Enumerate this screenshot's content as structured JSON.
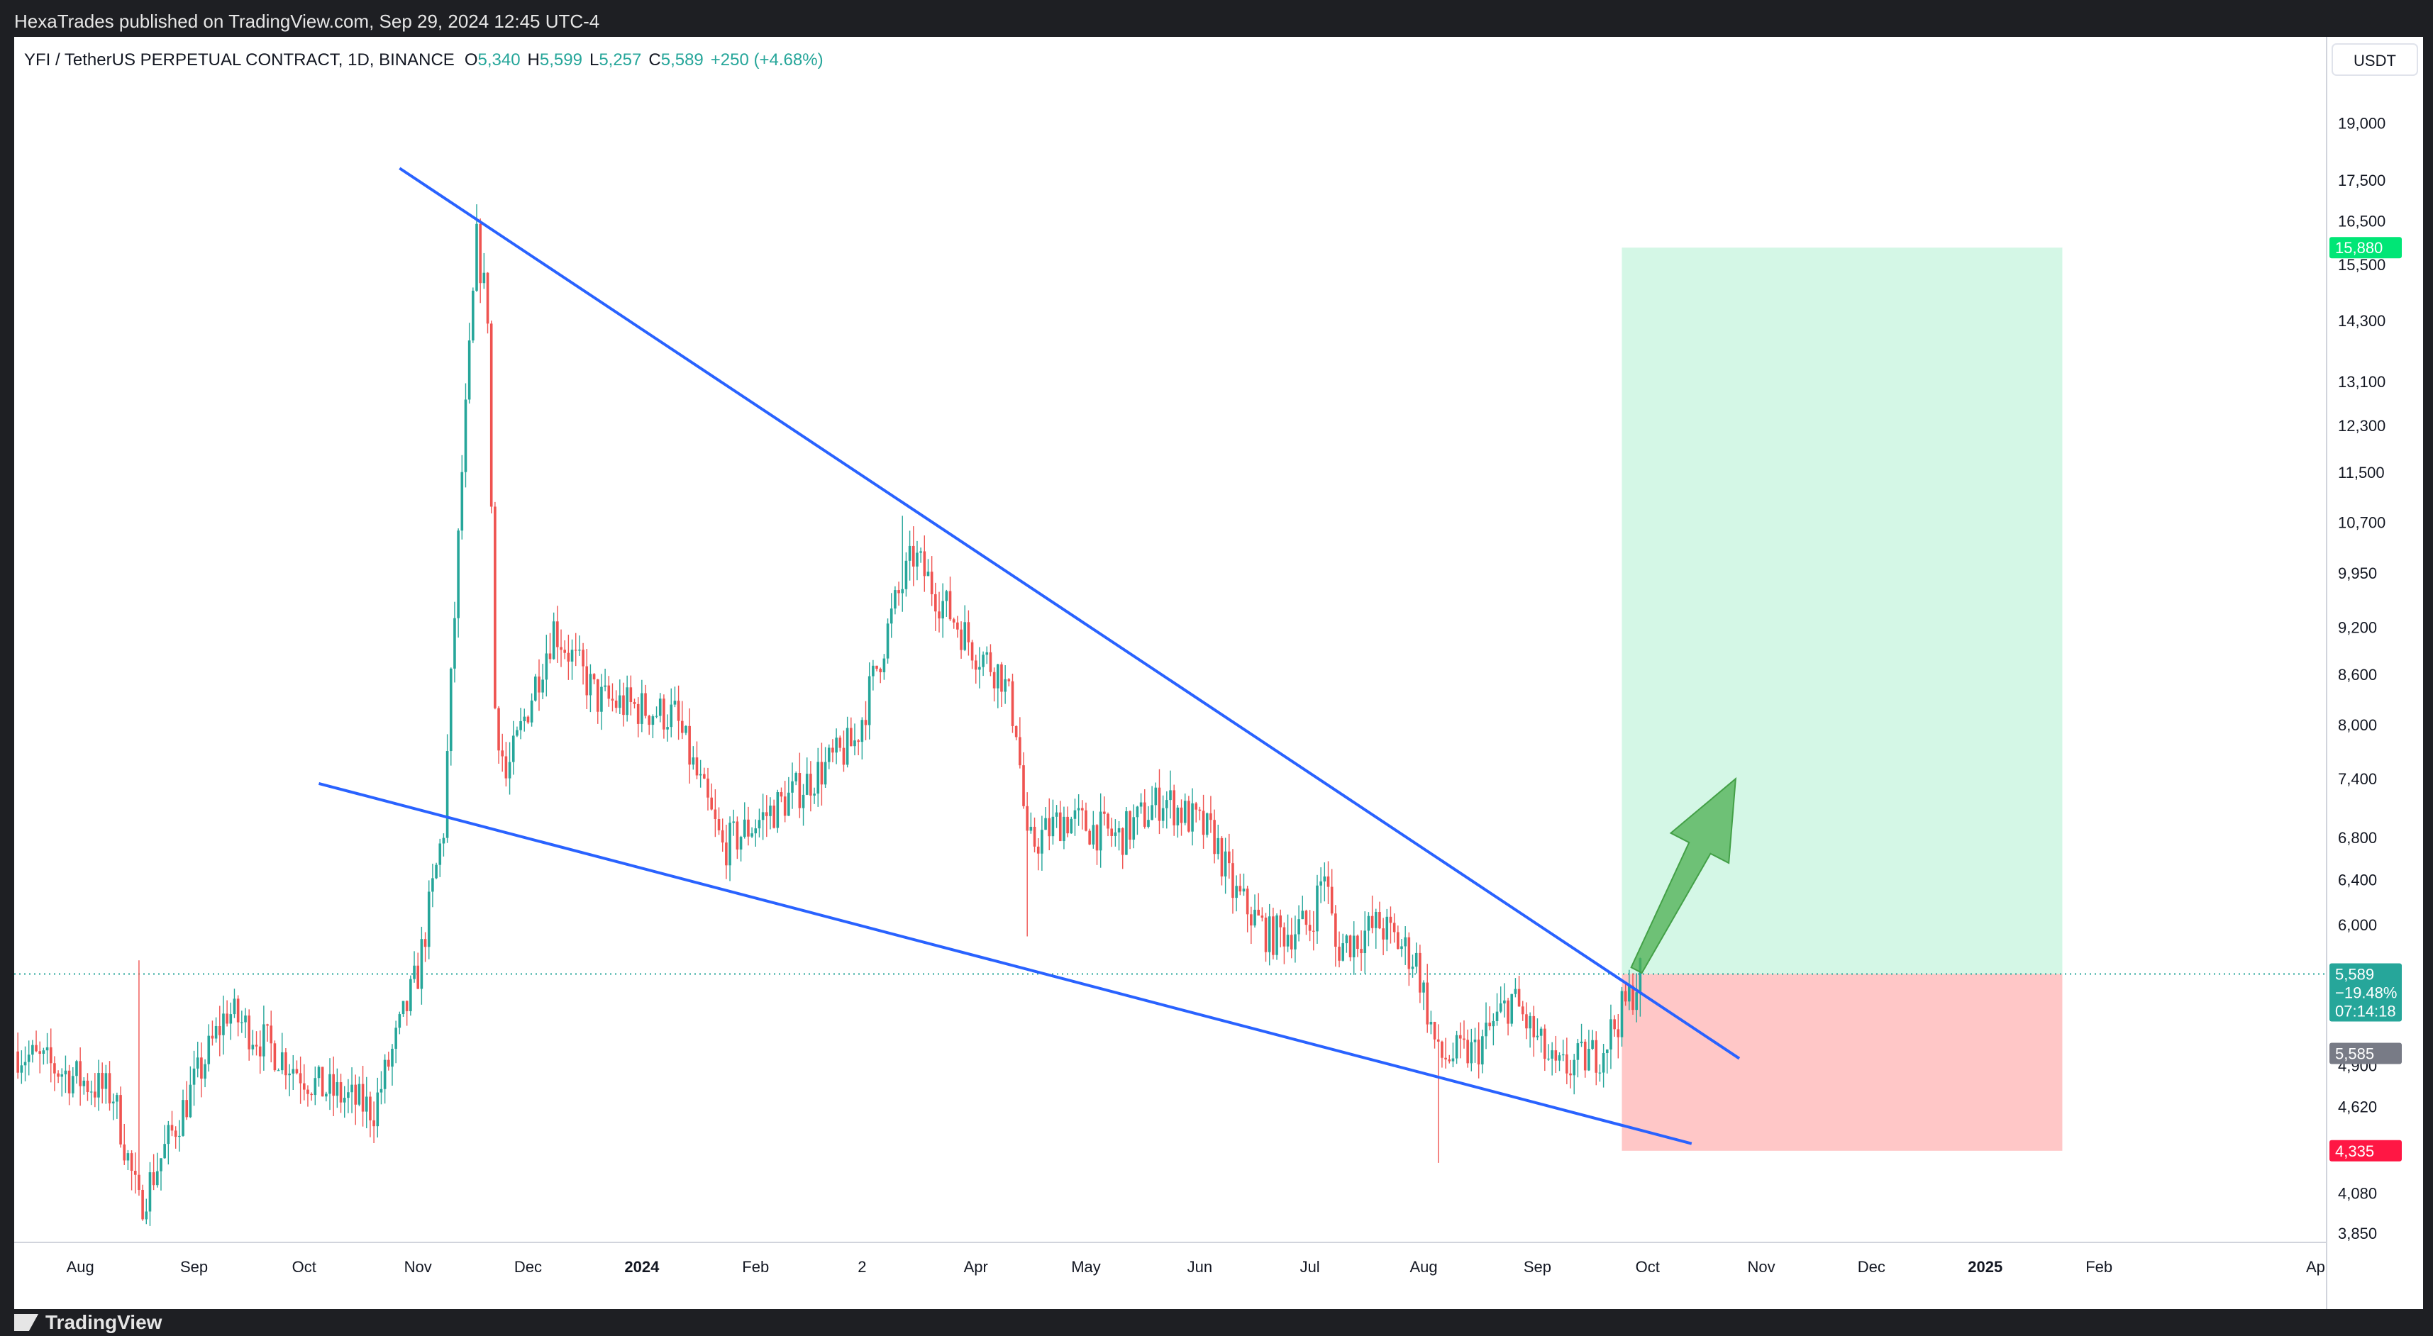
{
  "header": {
    "text": "HexaTrades published on TradingView.com, Sep 29, 2024 12:45 UTC-4"
  },
  "legend": {
    "symbol": "YFI / TetherUS PERPETUAL CONTRACT, 1D, BINANCE",
    "o_label": "O",
    "o_value": "5,340",
    "h_label": "H",
    "h_value": "5,599",
    "l_label": "L",
    "l_value": "5,257",
    "c_label": "C",
    "c_value": "5,589",
    "change": "+250 (+4.68%)"
  },
  "footer": {
    "brand": "TradingView"
  },
  "colors": {
    "up": "#26a69a",
    "down": "#ef5350",
    "trendline": "#2962ff",
    "target_zone": "#d4f7e6",
    "stop_zone": "#ffc7c7",
    "arrow": "#4caf50"
  },
  "chart_data": {
    "type": "candlestick",
    "scale": "log",
    "currency": "USDT",
    "x_ticks": [
      "Aug",
      "Sep",
      "Oct",
      "Nov",
      "Dec",
      "2024",
      "Feb",
      "2",
      "Apr",
      "May",
      "Jun",
      "Jul",
      "Aug",
      "Sep",
      "Oct",
      "Nov",
      "Dec",
      "2025",
      "Feb",
      "Ap"
    ],
    "x_ticks_bold": [
      "2024",
      "2025"
    ],
    "y_ticks": [
      "19,000",
      "17,500",
      "16,500",
      "15,500",
      "14,300",
      "13,100",
      "12,300",
      "11,500",
      "10,700",
      "9,950",
      "9,200",
      "8,600",
      "8,000",
      "7,400",
      "6,800",
      "6,400",
      "6,000",
      "4,900",
      "4,620",
      "4,080",
      "3,850"
    ],
    "y_range": [
      3800,
      21500
    ],
    "current_price": {
      "value": 5589,
      "label": "5,589",
      "change_pct": "−19.48%",
      "countdown": "07:14:18"
    },
    "secondary_price": {
      "value": 5585,
      "label": "5,585"
    },
    "target": {
      "value": 15880,
      "label": "15,880"
    },
    "stop": {
      "value": 4335,
      "label": "4,335"
    },
    "anchors": [
      {
        "date": "2023-07-15",
        "price": 5000
      },
      {
        "date": "2023-08-10",
        "price": 4700
      },
      {
        "date": "2023-08-17",
        "price": 4000
      },
      {
        "date": "2023-09-10",
        "price": 5300
      },
      {
        "date": "2023-10-05",
        "price": 4750
      },
      {
        "date": "2023-10-20",
        "price": 4600
      },
      {
        "date": "2023-11-01",
        "price": 5600
      },
      {
        "date": "2023-11-08",
        "price": 6900
      },
      {
        "date": "2023-11-13",
        "price": 11500
      },
      {
        "date": "2023-11-17",
        "price": 16000
      },
      {
        "date": "2023-11-20",
        "price": 14500
      },
      {
        "date": "2023-11-22",
        "price": 8200
      },
      {
        "date": "2023-11-25",
        "price": 7400
      },
      {
        "date": "2023-12-03",
        "price": 8500
      },
      {
        "date": "2023-12-08",
        "price": 9200
      },
      {
        "date": "2023-12-20",
        "price": 8300
      },
      {
        "date": "2024-01-10",
        "price": 8100
      },
      {
        "date": "2024-01-23",
        "price": 6700
      },
      {
        "date": "2024-02-10",
        "price": 7200
      },
      {
        "date": "2024-02-28",
        "price": 7800
      },
      {
        "date": "2024-03-10",
        "price": 9500
      },
      {
        "date": "2024-03-15",
        "price": 10200
      },
      {
        "date": "2024-03-22",
        "price": 9600
      },
      {
        "date": "2024-04-01",
        "price": 8900
      },
      {
        "date": "2024-04-08",
        "price": 8600
      },
      {
        "date": "2024-04-12",
        "price": 8000
      },
      {
        "date": "2024-04-15",
        "price": 6700
      },
      {
        "date": "2024-04-25",
        "price": 7000
      },
      {
        "date": "2024-05-10",
        "price": 6800
      },
      {
        "date": "2024-05-22",
        "price": 7200
      },
      {
        "date": "2024-06-05",
        "price": 6800
      },
      {
        "date": "2024-06-10",
        "price": 6300
      },
      {
        "date": "2024-06-20",
        "price": 5900
      },
      {
        "date": "2024-07-01",
        "price": 6000
      },
      {
        "date": "2024-07-05",
        "price": 6500
      },
      {
        "date": "2024-07-08",
        "price": 5800
      },
      {
        "date": "2024-07-20",
        "price": 6000
      },
      {
        "date": "2024-07-30",
        "price": 5700
      },
      {
        "date": "2024-08-05",
        "price": 4950
      },
      {
        "date": "2024-08-15",
        "price": 5000
      },
      {
        "date": "2024-08-25",
        "price": 5400
      },
      {
        "date": "2024-09-06",
        "price": 4850
      },
      {
        "date": "2024-09-18",
        "price": 5000
      },
      {
        "date": "2024-09-26",
        "price": 5400
      },
      {
        "date": "2024-09-29",
        "price": 5589
      }
    ],
    "spikes": [
      {
        "date": "2023-08-17",
        "high": 5700,
        "low": 4500
      },
      {
        "date": "2023-11-17",
        "high": 16000,
        "low": 15000
      },
      {
        "date": "2024-03-12",
        "high": 10800,
        "low": 9500
      },
      {
        "date": "2024-04-15",
        "high": 6900,
        "low": 5900
      },
      {
        "date": "2024-08-05",
        "high": 5200,
        "low": 4260
      },
      {
        "date": "2024-09-29",
        "high": 5599,
        "low": 5257
      }
    ],
    "trendlines": [
      {
        "name": "",
        "points": [
          {
            "date": "2023-10-27",
            "price": 17800
          },
          {
            "date": "2024-10-26",
            "price": 4950
          }
        ]
      },
      {
        "name": "",
        "points": [
          {
            "date": "2023-10-05",
            "price": 7350
          },
          {
            "date": "2024-10-13",
            "price": 4380
          }
        ]
      }
    ],
    "position": {
      "start_date": "2024-09-24",
      "end_date": "2025-01-22",
      "entry": 5589,
      "target": 15880,
      "stop": 4335
    },
    "arrow": {
      "from": {
        "date": "2024-09-28",
        "price": 5620
      },
      "to": {
        "date": "2024-10-25",
        "price": 7400
      }
    }
  }
}
